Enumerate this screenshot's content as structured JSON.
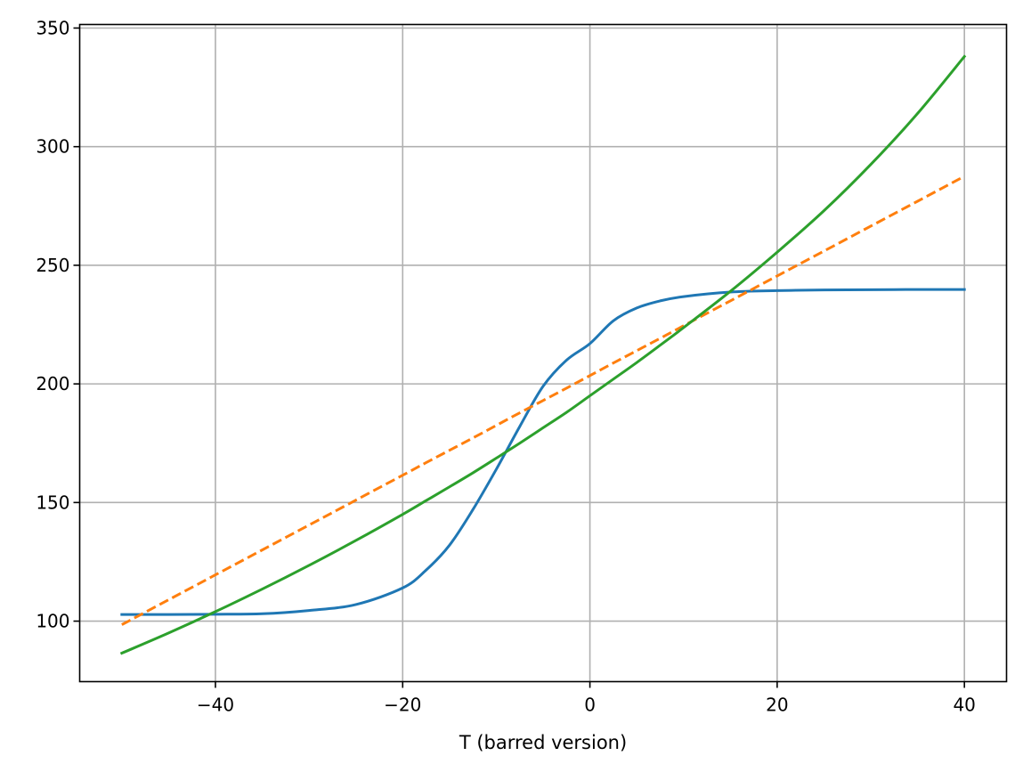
{
  "chart_data": {
    "type": "line",
    "title": "",
    "xlabel": "T (barred version)",
    "ylabel": "",
    "xlim": [
      -54.5,
      44.5
    ],
    "ylim": [
      74.5,
      351.5
    ],
    "xticks": [
      -40,
      -20,
      0,
      20,
      40
    ],
    "yticks": [
      100,
      150,
      200,
      250,
      300,
      350
    ],
    "xtick_labels": [
      "−40",
      "−20",
      "0",
      "20",
      "40"
    ],
    "ytick_labels": [
      "100",
      "150",
      "200",
      "250",
      "300",
      "350"
    ],
    "grid": true,
    "legend": "none",
    "x": [
      -50,
      -45,
      -40,
      -35,
      -30,
      -25,
      -20,
      -17.5,
      -15,
      -12.5,
      -10,
      -7.5,
      -5,
      -2.5,
      0,
      2.5,
      5,
      7.5,
      10,
      15,
      20,
      25,
      30,
      35,
      40
    ],
    "series": [
      {
        "color": "#1f77b4",
        "style": "solid",
        "values": [
          102.8,
          102.8,
          102.9,
          103.1,
          104.5,
          107.0,
          114.0,
          121.5,
          132.0,
          147.0,
          164.0,
          182.0,
          199.0,
          210.0,
          217.0,
          226.6,
          232.0,
          235.0,
          236.8,
          238.7,
          239.3,
          239.6,
          239.7,
          239.8,
          239.8
        ]
      },
      {
        "color": "#ff7f0e",
        "style": "dashed",
        "values": [
          98.5,
          109.0,
          119.5,
          130.0,
          140.5,
          151.0,
          161.5,
          166.8,
          172.0,
          177.2,
          182.5,
          187.8,
          193.0,
          198.2,
          203.5,
          208.8,
          214.0,
          219.2,
          224.5,
          235.0,
          245.5,
          256.0,
          266.5,
          277.0,
          287.5
        ]
      },
      {
        "color": "#2ca02c",
        "style": "solid",
        "values": [
          86.5,
          95.0,
          104.0,
          113.5,
          123.5,
          134.0,
          145.0,
          150.8,
          156.6,
          162.5,
          168.7,
          175.0,
          181.5,
          188.0,
          195.0,
          202.0,
          209.0,
          216.3,
          223.7,
          239.0,
          255.5,
          273.0,
          292.5,
          314.0,
          338.0
        ]
      }
    ]
  }
}
